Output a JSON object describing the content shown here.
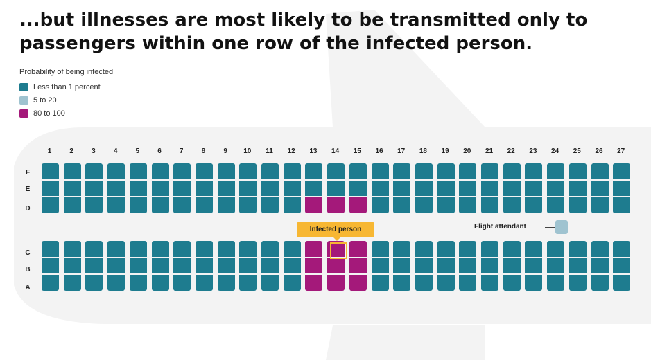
{
  "title": "...but illnesses are most likely to be transmitted only to passengers within one row of the infected person.",
  "legend": {
    "title": "Probability of being infected",
    "items": [
      {
        "label": "Less than 1 percent",
        "color": "#1e7c8f",
        "key": "low"
      },
      {
        "label": "5 to 20",
        "color": "#9fc3d0",
        "key": "mid"
      },
      {
        "label": "80 to 100",
        "color": "#a4197a",
        "key": "high"
      }
    ]
  },
  "columns": [
    "1",
    "2",
    "3",
    "4",
    "5",
    "6",
    "7",
    "8",
    "9",
    "10",
    "11",
    "12",
    "13",
    "14",
    "15",
    "16",
    "17",
    "18",
    "19",
    "20",
    "21",
    "22",
    "23",
    "24",
    "25",
    "26",
    "27"
  ],
  "rows_top": [
    "F",
    "E",
    "D"
  ],
  "rows_bottom": [
    "C",
    "B",
    "A"
  ],
  "high_risk_seats": [
    "13D",
    "14D",
    "15D",
    "13C",
    "14C",
    "15C",
    "13B",
    "14B",
    "15B",
    "13A",
    "14A",
    "15A"
  ],
  "infected_seat": "14C",
  "infected_label": "Infected person",
  "flight_attendant_label": "Flight attendant",
  "colors": {
    "low": "#1e7c8f",
    "mid": "#9fc3d0",
    "high": "#a4197a",
    "highlight": "#f7b733",
    "fuselage": "#f3f3f3"
  }
}
